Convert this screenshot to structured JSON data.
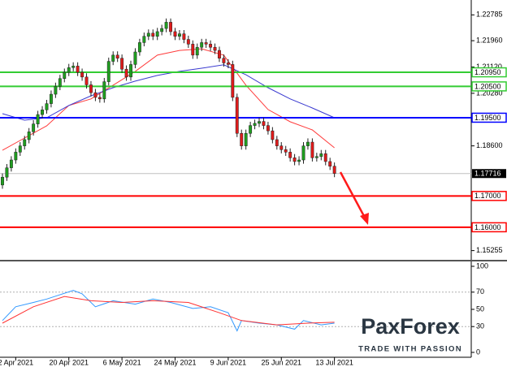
{
  "chart_data": [
    {
      "type": "candlestick",
      "categories": [
        null,
        null,
        null,
        "2 Apr 2021",
        null,
        null,
        null,
        null,
        null,
        null,
        null,
        null,
        null,
        null,
        null,
        "20 Apr 2021",
        null,
        null,
        null,
        null,
        null,
        null,
        null,
        null,
        null,
        null,
        null,
        "6 May 2021",
        null,
        null,
        null,
        null,
        null,
        null,
        null,
        null,
        null,
        null,
        null,
        "24 May 2021",
        null,
        null,
        null,
        null,
        null,
        null,
        null,
        null,
        null,
        null,
        null,
        "9 Jun 2021",
        null,
        null,
        null,
        null,
        null,
        null,
        null,
        null,
        null,
        null,
        null,
        "25 Jun 2021",
        null,
        null,
        null,
        null,
        null,
        null,
        null,
        null,
        null,
        null,
        null,
        "13 Jul 2021"
      ],
      "open": [
        1.1735,
        1.176,
        1.179,
        1.1815,
        1.184,
        1.186,
        1.188,
        1.1905,
        1.193,
        1.196,
        1.1975,
        1.1995,
        1.2025,
        1.205,
        1.2075,
        1.2095,
        1.211,
        1.2115,
        1.2095,
        1.208,
        1.2055,
        1.203,
        1.2015,
        1.201,
        1.2065,
        1.213,
        1.215,
        1.214,
        1.2105,
        1.208,
        1.212,
        1.216,
        1.219,
        1.221,
        1.222,
        1.221,
        1.2225,
        1.2235,
        1.2255,
        1.2225,
        1.221,
        1.2218,
        1.22,
        1.2185,
        1.215,
        1.2175,
        1.219,
        1.2185,
        1.2175,
        1.2165,
        1.214,
        1.2125,
        1.212,
        1.2015,
        1.19,
        1.186,
        1.19,
        1.1925,
        1.1932,
        1.1938,
        1.1925,
        1.1908,
        1.188,
        1.186,
        1.1848,
        1.184,
        1.1822,
        1.181,
        1.1815,
        1.186,
        1.1872,
        1.1822,
        1.1826,
        1.1835,
        1.181,
        1.1795
      ],
      "high": [
        1.1772,
        1.1802,
        1.1827,
        1.1852,
        1.1872,
        1.1892,
        1.1917,
        1.1942,
        1.1972,
        1.1987,
        1.2007,
        1.2037,
        1.2062,
        1.2087,
        1.2107,
        1.2122,
        1.2127,
        1.2127,
        1.2107,
        1.2092,
        1.2067,
        1.2042,
        1.2027,
        1.2077,
        1.2142,
        1.2162,
        1.2162,
        1.2152,
        1.2117,
        1.2132,
        1.2172,
        1.2202,
        1.2222,
        1.2232,
        1.2232,
        1.2237,
        1.2247,
        1.2267,
        1.2267,
        1.2237,
        1.223,
        1.223,
        1.2212,
        1.2197,
        1.2187,
        1.2202,
        1.2202,
        1.2197,
        1.2187,
        1.2177,
        1.2152,
        1.2137,
        1.2132,
        1.2027,
        1.1912,
        1.1912,
        1.1937,
        1.1944,
        1.195,
        1.195,
        1.1937,
        1.192,
        1.1892,
        1.1872,
        1.186,
        1.1852,
        1.1834,
        1.1827,
        1.1872,
        1.1884,
        1.1884,
        1.1838,
        1.1847,
        1.1847,
        1.1822,
        1.1807
      ],
      "low": [
        1.1723,
        1.1748,
        1.1778,
        1.1803,
        1.1828,
        1.1848,
        1.1868,
        1.1893,
        1.1918,
        1.1948,
        1.1963,
        1.1983,
        1.2013,
        1.2038,
        1.2063,
        1.2083,
        1.2098,
        1.2083,
        1.2068,
        1.2043,
        1.2018,
        1.2003,
        1.1998,
        1.1998,
        1.2053,
        1.2118,
        1.2128,
        1.2093,
        1.2068,
        1.2068,
        1.2108,
        1.2148,
        1.2178,
        1.2198,
        1.2198,
        1.2198,
        1.2213,
        1.2223,
        1.2213,
        1.2198,
        1.2198,
        1.2188,
        1.2173,
        1.2138,
        1.2138,
        1.2163,
        1.2173,
        1.2163,
        1.2153,
        1.2128,
        1.2113,
        1.2108,
        1.2003,
        1.1888,
        1.1848,
        1.1848,
        1.1888,
        1.1913,
        1.192,
        1.1913,
        1.1896,
        1.1868,
        1.1848,
        1.1836,
        1.1828,
        1.181,
        1.1798,
        1.1798,
        1.1803,
        1.1848,
        1.181,
        1.181,
        1.1814,
        1.1798,
        1.1783,
        1.176
      ],
      "close": [
        1.176,
        1.179,
        1.1815,
        1.184,
        1.186,
        1.188,
        1.1905,
        1.193,
        1.196,
        1.1975,
        1.1995,
        1.2025,
        1.205,
        1.2075,
        1.2095,
        1.211,
        1.2115,
        1.2095,
        1.208,
        1.2055,
        1.203,
        1.2015,
        1.201,
        1.2065,
        1.213,
        1.215,
        1.214,
        1.2105,
        1.208,
        1.212,
        1.216,
        1.219,
        1.221,
        1.222,
        1.221,
        1.2225,
        1.2235,
        1.2255,
        1.2225,
        1.221,
        1.2218,
        1.22,
        1.2185,
        1.215,
        1.2175,
        1.219,
        1.2185,
        1.2175,
        1.2165,
        1.214,
        1.2125,
        1.212,
        1.2015,
        1.19,
        1.186,
        1.19,
        1.1925,
        1.1932,
        1.1938,
        1.1925,
        1.1908,
        1.188,
        1.186,
        1.1848,
        1.184,
        1.1822,
        1.181,
        1.1815,
        1.186,
        1.1872,
        1.1822,
        1.1826,
        1.1835,
        1.181,
        1.1795,
        1.1772
      ],
      "up_color": "#1f9e1f",
      "down_color": "#e01b1b",
      "overlays": [
        {
          "color": "#ff3b3b",
          "x": [
            0,
            5,
            10,
            15,
            20,
            25,
            30,
            35,
            40,
            45,
            50,
            55,
            60,
            65,
            70,
            75
          ],
          "values": [
            1.1846,
            1.1885,
            1.1924,
            1.1989,
            1.201,
            1.2054,
            1.2098,
            1.215,
            1.2165,
            1.217,
            1.215,
            1.2054,
            1.1976,
            1.1937,
            1.1911,
            1.1854
          ]
        },
        {
          "color": "#3a3ad0",
          "x": [
            0,
            5,
            10,
            15,
            20,
            25,
            30,
            35,
            40,
            45,
            50,
            55,
            60,
            65,
            70,
            75
          ],
          "values": [
            1.1963,
            1.1942,
            1.195,
            1.1989,
            1.202,
            1.2046,
            1.2067,
            1.2085,
            1.2098,
            1.2108,
            1.2119,
            1.2087,
            1.2046,
            1.201,
            1.1981,
            1.195
          ]
        }
      ],
      "levels": [
        {
          "value": 1.2095,
          "label": "1.20950",
          "color": "#33cc33"
        },
        {
          "value": 1.205,
          "label": "1.20500",
          "color": "#33cc33"
        },
        {
          "value": 1.195,
          "label": "1.19500",
          "color": "#0000ff"
        },
        {
          "value": 1.17,
          "label": "1.17000",
          "color": "#ff0000"
        },
        {
          "value": 1.16,
          "label": "1.16000",
          "color": "#ff0000"
        }
      ],
      "current_price": {
        "value": 1.17716,
        "label": "1.17716"
      },
      "xlim": [
        -0.55,
        105.9
      ],
      "ylim": [
        1.1496,
        1.2326
      ],
      "yticks": [
        1.22785,
        {
          "value": 1.2196,
          "label": "1.21960"
        },
        {
          "value": 1.2112,
          "label": "1.21120"
        },
        {
          "value": 1.2028,
          "label": "1.20280"
        },
        {
          "value": 1.186,
          "label": "1.18600"
        },
        1.15255
      ]
    },
    {
      "type": "line",
      "series": [
        {
          "color": "#3399ff",
          "x": [
            0,
            3,
            7,
            10,
            16,
            18,
            21,
            25,
            30,
            34,
            38,
            43,
            47,
            51,
            53,
            54,
            58,
            62,
            66,
            68,
            72,
            75
          ],
          "values": [
            37,
            53,
            58,
            62,
            72,
            68,
            53,
            60,
            56,
            62,
            58,
            51,
            53,
            46,
            25,
            37,
            34,
            32,
            27,
            37,
            32,
            34
          ]
        },
        {
          "color": "#ff3333",
          "x": [
            0,
            7,
            14,
            20,
            27,
            34,
            42,
            49,
            54,
            62,
            69,
            75
          ],
          "values": [
            34,
            53,
            65,
            60,
            58,
            60,
            58,
            46,
            37,
            32,
            34,
            35
          ]
        }
      ],
      "xlim": [
        -0.55,
        105.9
      ],
      "ylim": [
        0,
        100
      ],
      "yticks": [
        0,
        30,
        50,
        70,
        100
      ],
      "grid_levels": [
        30,
        70
      ]
    }
  ],
  "logo": {
    "name": "PaxForex",
    "tagline": "TRADE WITH PASSION"
  }
}
